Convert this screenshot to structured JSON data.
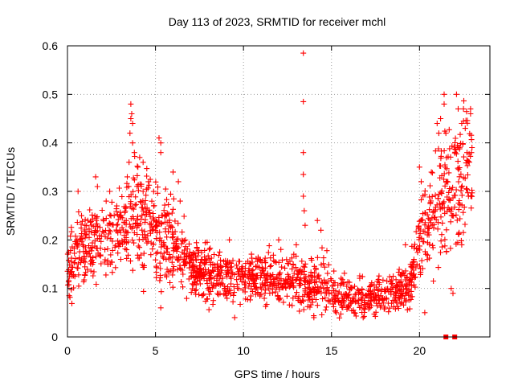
{
  "chart_data": {
    "type": "scatter",
    "title": "Day 113 of 2023, SRMTID for receiver mchl",
    "xlabel": "GPS time / hours",
    "ylabel": "SRMTID / TECUs",
    "xlim": [
      0,
      24
    ],
    "ylim": [
      0,
      0.6
    ],
    "x_ticks": [
      0,
      5,
      10,
      15,
      20
    ],
    "x_tick_labels": [
      "0",
      "5",
      "10",
      "15",
      "20"
    ],
    "y_ticks": [
      0,
      0.1,
      0.2,
      0.3,
      0.4,
      0.5,
      0.6
    ],
    "y_tick_labels": [
      "0",
      "0.1",
      "0.2",
      "0.3",
      "0.4",
      "0.5",
      "0.6"
    ],
    "grid": true,
    "marker": "+",
    "series_color": "#ff0000",
    "trend": {
      "x": [
        0,
        1,
        2,
        3,
        3.5,
        4,
        5,
        6,
        6.5,
        7,
        8,
        9,
        10,
        11,
        12,
        13,
        14,
        14.5,
        15,
        16,
        17,
        18,
        19,
        19.5,
        20,
        20.5,
        21,
        21.5,
        22,
        22.5,
        23
      ],
      "y": [
        0.14,
        0.18,
        0.2,
        0.22,
        0.23,
        0.24,
        0.22,
        0.2,
        0.16,
        0.15,
        0.13,
        0.13,
        0.12,
        0.12,
        0.12,
        0.12,
        0.1,
        0.12,
        0.09,
        0.08,
        0.08,
        0.09,
        0.1,
        0.11,
        0.2,
        0.24,
        0.27,
        0.3,
        0.33,
        0.32,
        0.36
      ],
      "spread": [
        0.04,
        0.05,
        0.05,
        0.05,
        0.06,
        0.07,
        0.06,
        0.05,
        0.04,
        0.035,
        0.035,
        0.035,
        0.03,
        0.03,
        0.03,
        0.035,
        0.035,
        0.04,
        0.025,
        0.02,
        0.02,
        0.025,
        0.025,
        0.03,
        0.05,
        0.06,
        0.08,
        0.09,
        0.1,
        0.09,
        0.08
      ]
    },
    "highlights": [
      {
        "x": 0.1,
        "y": 0.13
      },
      {
        "x": 0.6,
        "y": 0.3
      },
      {
        "x": 0.8,
        "y": 0.25
      },
      {
        "x": 1.0,
        "y": 0.23
      },
      {
        "x": 1.6,
        "y": 0.33
      },
      {
        "x": 1.7,
        "y": 0.31
      },
      {
        "x": 2.2,
        "y": 0.28
      },
      {
        "x": 2.4,
        "y": 0.3
      },
      {
        "x": 3.4,
        "y": 0.33
      },
      {
        "x": 3.5,
        "y": 0.36
      },
      {
        "x": 3.55,
        "y": 0.42
      },
      {
        "x": 3.6,
        "y": 0.45
      },
      {
        "x": 3.6,
        "y": 0.48
      },
      {
        "x": 3.65,
        "y": 0.46
      },
      {
        "x": 3.7,
        "y": 0.44
      },
      {
        "x": 3.7,
        "y": 0.4
      },
      {
        "x": 3.8,
        "y": 0.38
      },
      {
        "x": 4.0,
        "y": 0.35
      },
      {
        "x": 4.1,
        "y": 0.37
      },
      {
        "x": 4.3,
        "y": 0.36
      },
      {
        "x": 4.3,
        "y": 0.3
      },
      {
        "x": 4.6,
        "y": 0.32
      },
      {
        "x": 4.9,
        "y": 0.27
      },
      {
        "x": 5.2,
        "y": 0.41
      },
      {
        "x": 5.3,
        "y": 0.4
      },
      {
        "x": 5.3,
        "y": 0.38
      },
      {
        "x": 5.3,
        "y": 0.06
      },
      {
        "x": 6.0,
        "y": 0.34
      },
      {
        "x": 6.3,
        "y": 0.32
      },
      {
        "x": 6.4,
        "y": 0.28
      },
      {
        "x": 9.2,
        "y": 0.2
      },
      {
        "x": 9.5,
        "y": 0.04
      },
      {
        "x": 12.0,
        "y": 0.2
      },
      {
        "x": 13.0,
        "y": 0.19
      },
      {
        "x": 13.4,
        "y": 0.585
      },
      {
        "x": 13.4,
        "y": 0.485
      },
      {
        "x": 13.4,
        "y": 0.38
      },
      {
        "x": 13.4,
        "y": 0.335
      },
      {
        "x": 13.4,
        "y": 0.29
      },
      {
        "x": 13.45,
        "y": 0.26
      },
      {
        "x": 13.5,
        "y": 0.23
      },
      {
        "x": 14.2,
        "y": 0.24
      },
      {
        "x": 14.4,
        "y": 0.22
      },
      {
        "x": 14.0,
        "y": 0.04
      },
      {
        "x": 16.8,
        "y": 0.04
      },
      {
        "x": 19.2,
        "y": 0.19
      },
      {
        "x": 20.0,
        "y": 0.35
      },
      {
        "x": 20.1,
        "y": 0.32
      },
      {
        "x": 20.3,
        "y": 0.05
      },
      {
        "x": 21.0,
        "y": 0.44
      },
      {
        "x": 21.1,
        "y": 0.42
      },
      {
        "x": 21.2,
        "y": 0.45
      },
      {
        "x": 21.4,
        "y": 0.5
      },
      {
        "x": 21.4,
        "y": 0.48
      },
      {
        "x": 21.5,
        "y": 0.42
      },
      {
        "x": 21.8,
        "y": 0.1
      },
      {
        "x": 21.9,
        "y": 0.09
      },
      {
        "x": 22.1,
        "y": 0.5
      },
      {
        "x": 22.2,
        "y": 0.47
      },
      {
        "x": 22.4,
        "y": 0.44
      },
      {
        "x": 22.5,
        "y": 0.47
      },
      {
        "x": 22.6,
        "y": 0.43
      },
      {
        "x": 22.7,
        "y": 0.38
      },
      {
        "x": 22.9,
        "y": 0.46
      },
      {
        "x": 22.9,
        "y": 0.47
      },
      {
        "x": 22.4,
        "y": 0.19
      }
    ],
    "zero_markers": [
      {
        "x": 21.5,
        "y": 0.0
      },
      {
        "x": 22.0,
        "y": 0.0
      }
    ]
  }
}
